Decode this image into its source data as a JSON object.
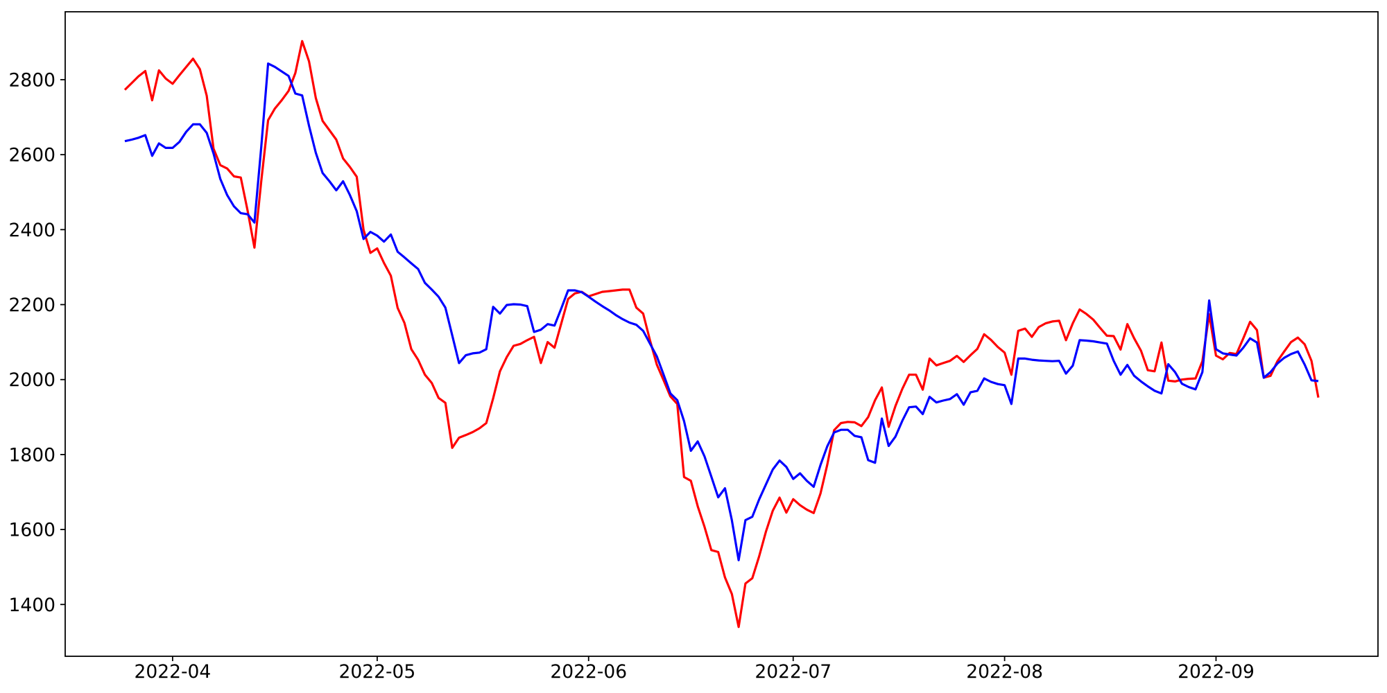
{
  "figure": {
    "background": "#ffffff",
    "axes_edge_color": "#000000",
    "tick_label_color": "#000000"
  },
  "chart_data": {
    "type": "line",
    "title": "",
    "xlabel": "",
    "ylabel": "",
    "grid": false,
    "legend": null,
    "x_start_date": "2022-03-25",
    "x_end_date": "2022-09-16",
    "x_step_days": 1,
    "n_points": 176,
    "margin_fraction": 0.05,
    "xticks": [
      {
        "label": "2022-04",
        "day_index": 7
      },
      {
        "label": "2022-05",
        "day_index": 37
      },
      {
        "label": "2022-06",
        "day_index": 68
      },
      {
        "label": "2022-07",
        "day_index": 98
      },
      {
        "label": "2022-08",
        "day_index": 129
      },
      {
        "label": "2022-09",
        "day_index": 160
      }
    ],
    "yticks": [
      1400,
      1600,
      1800,
      2000,
      2200,
      2400,
      2600,
      2800
    ],
    "series": [
      {
        "name": "red-series",
        "color": "#ff0000",
        "values": [
          2773,
          2791,
          2809,
          2823,
          2745,
          2825,
          2803,
          2789,
          2812,
          2834,
          2856,
          2828,
          2757,
          2616,
          2572,
          2563,
          2542,
          2539,
          2450,
          2352,
          2529,
          2692,
          2723,
          2745,
          2770,
          2818,
          2903,
          2849,
          2751,
          2690,
          2665,
          2640,
          2590,
          2567,
          2541,
          2400,
          2338,
          2350,
          2311,
          2277,
          2191,
          2151,
          2081,
          2053,
          2013,
          1991,
          1951,
          1938,
          1818,
          1845,
          1852,
          1860,
          1870,
          1884,
          1950,
          2022,
          2060,
          2090,
          2095,
          2105,
          2114,
          2044,
          2100,
          2085,
          2150,
          2215,
          2230,
          2234,
          2222,
          2228,
          2234,
          2236,
          2238,
          2240,
          2240,
          2192,
          2176,
          2105,
          2040,
          1998,
          1955,
          1935,
          1740,
          1730,
          1662,
          1607,
          1545,
          1540,
          1472,
          1428,
          1340,
          1456,
          1470,
          1528,
          1594,
          1650,
          1685,
          1645,
          1681,
          1665,
          1653,
          1644,
          1696,
          1773,
          1865,
          1884,
          1887,
          1886,
          1876,
          1900,
          1945,
          1979,
          1874,
          1930,
          1975,
          2013,
          2013,
          1973,
          2056,
          2038,
          2044,
          2050,
          2063,
          2047,
          2065,
          2082,
          2121,
          2106,
          2087,
          2072,
          2013,
          2130,
          2136,
          2114,
          2140,
          2150,
          2155,
          2157,
          2105,
          2150,
          2187,
          2175,
          2160,
          2138,
          2117,
          2116,
          2080,
          2148,
          2110,
          2077,
          2025,
          2022,
          2099,
          1997,
          1995,
          2000,
          2002,
          2003,
          2049,
          2174,
          2064,
          2054,
          2071,
          2068,
          2110,
          2154,
          2132,
          2005,
          2010,
          2049,
          2075,
          2100,
          2112,
          2094,
          2050,
          1952
        ]
      },
      {
        "name": "blue-series",
        "color": "#0000ff",
        "values": [
          2636,
          2640,
          2645,
          2652,
          2597,
          2630,
          2618,
          2618,
          2634,
          2661,
          2681,
          2681,
          2658,
          2603,
          2535,
          2492,
          2462,
          2444,
          2441,
          2419,
          2620,
          2843,
          2834,
          2822,
          2810,
          2763,
          2758,
          2677,
          2605,
          2551,
          2529,
          2505,
          2529,
          2492,
          2449,
          2375,
          2394,
          2384,
          2368,
          2387,
          2341,
          2326,
          2310,
          2295,
          2258,
          2240,
          2221,
          2192,
          2118,
          2044,
          2065,
          2070,
          2072,
          2081,
          2194,
          2176,
          2199,
          2201,
          2200,
          2196,
          2127,
          2133,
          2148,
          2144,
          2190,
          2238,
          2238,
          2233,
          2221,
          2208,
          2196,
          2185,
          2172,
          2161,
          2152,
          2146,
          2130,
          2096,
          2062,
          2013,
          1963,
          1945,
          1889,
          1810,
          1835,
          1795,
          1741,
          1686,
          1710,
          1625,
          1518,
          1625,
          1634,
          1680,
          1720,
          1760,
          1784,
          1767,
          1735,
          1750,
          1730,
          1714,
          1772,
          1822,
          1859,
          1866,
          1866,
          1850,
          1846,
          1785,
          1778,
          1896,
          1823,
          1848,
          1890,
          1926,
          1928,
          1908,
          1954,
          1939,
          1944,
          1948,
          1961,
          1933,
          1966,
          1970,
          2003,
          1994,
          1988,
          1985,
          1935,
          2056,
          2056,
          2053,
          2051,
          2050,
          2049,
          2050,
          2016,
          2037,
          2105,
          2104,
          2102,
          2099,
          2096,
          2050,
          2013,
          2039,
          2010,
          1995,
          1982,
          1970,
          1963,
          2041,
          2020,
          1989,
          1980,
          1974,
          2020,
          2211,
          2081,
          2070,
          2067,
          2064,
          2085,
          2110,
          2099,
          2005,
          2020,
          2043,
          2058,
          2068,
          2075,
          2040,
          1998,
          1996
        ]
      }
    ]
  }
}
